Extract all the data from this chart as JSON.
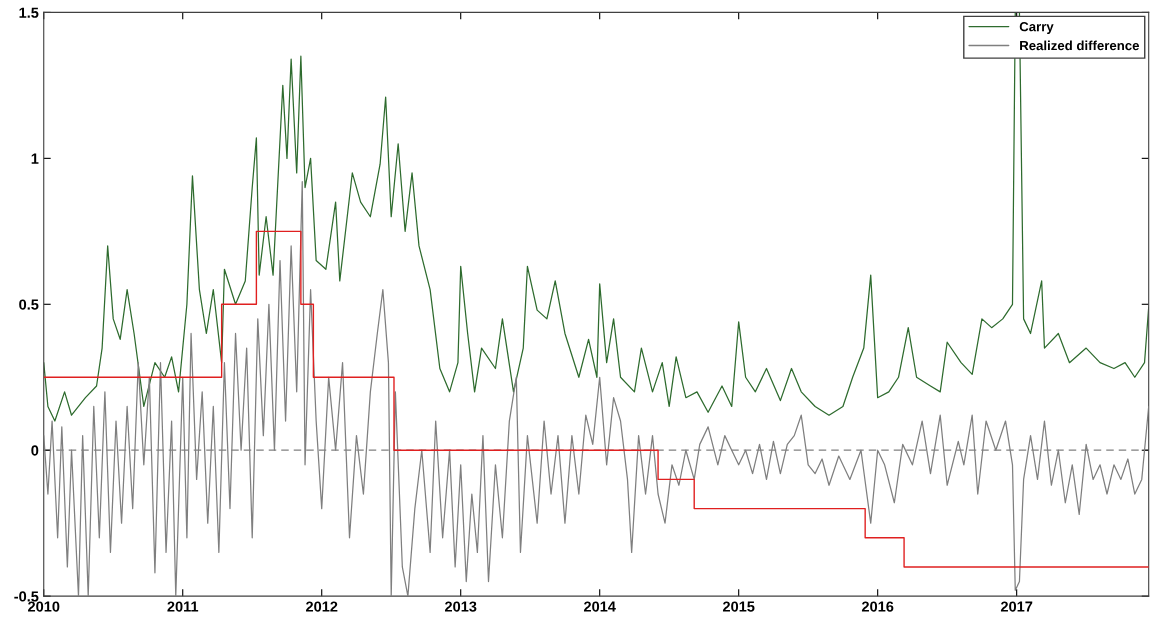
{
  "chart_data": {
    "type": "line",
    "xlim": [
      2010,
      2017.95
    ],
    "xticks": [
      2010,
      2011,
      2012,
      2013,
      2014,
      2015,
      2016,
      2017
    ],
    "ylim": [
      -0.5,
      1.5
    ],
    "yticks": [
      -0.5,
      0,
      0.5,
      1,
      1.5
    ],
    "grid": false,
    "legend": "top right",
    "ref_lines": [
      {
        "axis": "y",
        "value": 0,
        "color": "#808080",
        "line_style": "dashed"
      }
    ],
    "series": [
      {
        "name": "Carry",
        "color": "#2e6b2e",
        "x": [
          2010.0,
          2010.03,
          2010.08,
          2010.15,
          2010.2,
          2010.3,
          2010.38,
          2010.42,
          2010.46,
          2010.5,
          2010.55,
          2010.6,
          2010.65,
          2010.72,
          2010.8,
          2010.87,
          2010.92,
          2010.97,
          2011.03,
          2011.07,
          2011.12,
          2011.17,
          2011.22,
          2011.28,
          2011.3,
          2011.38,
          2011.45,
          2011.5,
          2011.53,
          2011.55,
          2011.6,
          2011.65,
          2011.72,
          2011.75,
          2011.78,
          2011.82,
          2011.85,
          2011.88,
          2011.92,
          2011.96,
          2012.03,
          2012.1,
          2012.13,
          2012.22,
          2012.28,
          2012.35,
          2012.42,
          2012.46,
          2012.5,
          2012.55,
          2012.6,
          2012.65,
          2012.7,
          2012.78,
          2012.85,
          2012.92,
          2012.98,
          2013.0,
          2013.05,
          2013.1,
          2013.15,
          2013.25,
          2013.3,
          2013.38,
          2013.45,
          2013.48,
          2013.55,
          2013.62,
          2013.68,
          2013.75,
          2013.85,
          2013.92,
          2013.98,
          2014.0,
          2014.05,
          2014.1,
          2014.15,
          2014.25,
          2014.3,
          2014.38,
          2014.45,
          2014.5,
          2014.55,
          2014.62,
          2014.7,
          2014.78,
          2014.88,
          2014.95,
          2015.0,
          2015.05,
          2015.12,
          2015.2,
          2015.3,
          2015.38,
          2015.45,
          2015.55,
          2015.65,
          2015.75,
          2015.82,
          2015.9,
          2015.95,
          2016.0,
          2016.08,
          2016.15,
          2016.22,
          2016.28,
          2016.38,
          2016.45,
          2016.5,
          2016.6,
          2016.68,
          2016.75,
          2016.82,
          2016.9,
          2016.97,
          2016.99,
          2017.02,
          2017.05,
          2017.1,
          2017.18,
          2017.2,
          2017.3,
          2017.38,
          2017.5,
          2017.6,
          2017.7,
          2017.78,
          2017.85,
          2017.92,
          2017.95
        ],
        "values": [
          0.3,
          0.15,
          0.1,
          0.2,
          0.12,
          0.18,
          0.22,
          0.35,
          0.7,
          0.45,
          0.38,
          0.55,
          0.4,
          0.15,
          0.3,
          0.25,
          0.32,
          0.2,
          0.5,
          0.94,
          0.55,
          0.4,
          0.55,
          0.3,
          0.62,
          0.5,
          0.58,
          0.9,
          1.07,
          0.6,
          0.8,
          0.6,
          1.25,
          1.0,
          1.34,
          0.95,
          1.35,
          0.9,
          1.0,
          0.65,
          0.62,
          0.85,
          0.58,
          0.95,
          0.85,
          0.8,
          0.98,
          1.21,
          0.8,
          1.05,
          0.75,
          0.95,
          0.7,
          0.55,
          0.28,
          0.2,
          0.3,
          0.63,
          0.4,
          0.2,
          0.35,
          0.28,
          0.45,
          0.2,
          0.35,
          0.63,
          0.48,
          0.45,
          0.58,
          0.4,
          0.25,
          0.38,
          0.25,
          0.57,
          0.3,
          0.45,
          0.25,
          0.2,
          0.35,
          0.2,
          0.3,
          0.15,
          0.32,
          0.18,
          0.2,
          0.13,
          0.22,
          0.15,
          0.44,
          0.25,
          0.2,
          0.28,
          0.17,
          0.28,
          0.2,
          0.15,
          0.12,
          0.15,
          0.25,
          0.35,
          0.6,
          0.18,
          0.2,
          0.25,
          0.42,
          0.25,
          0.22,
          0.2,
          0.37,
          0.3,
          0.26,
          0.45,
          0.42,
          0.45,
          0.5,
          1.5,
          1.5,
          0.45,
          0.4,
          0.58,
          0.35,
          0.4,
          0.3,
          0.35,
          0.3,
          0.28,
          0.3,
          0.25,
          0.3,
          0.49
        ]
      },
      {
        "name": "Realized difference",
        "color": "#7f7f7f",
        "x": [
          2010.0,
          2010.03,
          2010.06,
          2010.1,
          2010.13,
          2010.17,
          2010.2,
          2010.25,
          2010.28,
          2010.32,
          2010.36,
          2010.4,
          2010.44,
          2010.48,
          2010.52,
          2010.56,
          2010.6,
          2010.64,
          2010.68,
          2010.72,
          2010.76,
          2010.8,
          2010.84,
          2010.88,
          2010.92,
          2010.95,
          2011.0,
          2011.03,
          2011.06,
          2011.1,
          2011.14,
          2011.18,
          2011.22,
          2011.26,
          2011.3,
          2011.34,
          2011.38,
          2011.42,
          2011.46,
          2011.5,
          2011.54,
          2011.58,
          2011.62,
          2011.66,
          2011.7,
          2011.74,
          2011.78,
          2011.82,
          2011.86,
          2011.88,
          2011.92,
          2011.96,
          2012.0,
          2012.05,
          2012.1,
          2012.15,
          2012.2,
          2012.25,
          2012.3,
          2012.35,
          2012.4,
          2012.44,
          2012.48,
          2012.5,
          2012.53,
          2012.58,
          2012.62,
          2012.67,
          2012.72,
          2012.78,
          2012.82,
          2012.87,
          2012.92,
          2012.96,
          2013.0,
          2013.04,
          2013.08,
          2013.12,
          2013.16,
          2013.2,
          2013.25,
          2013.3,
          2013.35,
          2013.4,
          2013.43,
          2013.48,
          2013.55,
          2013.6,
          2013.65,
          2013.7,
          2013.75,
          2013.8,
          2013.85,
          2013.9,
          2013.95,
          2014.0,
          2014.05,
          2014.1,
          2014.15,
          2014.2,
          2014.23,
          2014.28,
          2014.33,
          2014.38,
          2014.42,
          2014.47,
          2014.52,
          2014.57,
          2014.62,
          2014.68,
          2014.72,
          2014.78,
          2014.85,
          2014.9,
          2014.95,
          2015.0,
          2015.05,
          2015.1,
          2015.15,
          2015.2,
          2015.25,
          2015.3,
          2015.35,
          2015.4,
          2015.45,
          2015.5,
          2015.55,
          2015.6,
          2015.65,
          2015.72,
          2015.8,
          2015.88,
          2015.95,
          2016.0,
          2016.05,
          2016.12,
          2016.18,
          2016.25,
          2016.32,
          2016.38,
          2016.45,
          2016.5,
          2016.58,
          2016.62,
          2016.68,
          2016.72,
          2016.78,
          2016.85,
          2016.92,
          2016.97,
          2016.99,
          2017.02,
          2017.05,
          2017.1,
          2017.15,
          2017.2,
          2017.25,
          2017.3,
          2017.35,
          2017.4,
          2017.45,
          2017.5,
          2017.55,
          2017.6,
          2017.65,
          2017.7,
          2017.75,
          2017.8,
          2017.85,
          2017.9,
          2017.95
        ],
        "values": [
          0.05,
          -0.15,
          0.1,
          -0.3,
          0.08,
          -0.4,
          0.0,
          -0.5,
          0.05,
          -0.5,
          0.15,
          -0.3,
          0.2,
          -0.35,
          0.1,
          -0.25,
          0.15,
          -0.2,
          0.3,
          -0.05,
          0.25,
          -0.42,
          0.3,
          -0.35,
          0.1,
          -0.5,
          0.25,
          -0.3,
          0.4,
          -0.1,
          0.2,
          -0.25,
          0.15,
          -0.35,
          0.3,
          -0.2,
          0.4,
          0.0,
          0.35,
          -0.3,
          0.45,
          0.05,
          0.5,
          0.0,
          0.65,
          0.1,
          0.7,
          0.2,
          0.92,
          -0.05,
          0.55,
          0.1,
          -0.2,
          0.25,
          0.0,
          0.3,
          -0.3,
          0.05,
          -0.15,
          0.2,
          0.4,
          0.55,
          0.3,
          -0.5,
          0.2,
          -0.4,
          -0.5,
          -0.2,
          0.0,
          -0.35,
          0.1,
          -0.3,
          0.0,
          -0.4,
          -0.05,
          -0.45,
          -0.15,
          -0.35,
          0.05,
          -0.45,
          -0.05,
          -0.3,
          0.1,
          0.25,
          -0.35,
          0.05,
          -0.25,
          0.1,
          -0.15,
          0.05,
          -0.25,
          0.05,
          -0.15,
          0.12,
          0.02,
          0.25,
          -0.05,
          0.18,
          0.1,
          -0.1,
          -0.35,
          0.05,
          -0.15,
          0.05,
          -0.15,
          -0.25,
          -0.05,
          -0.12,
          0.0,
          -0.1,
          0.02,
          0.08,
          -0.05,
          0.05,
          0.0,
          -0.05,
          0.0,
          -0.08,
          0.02,
          -0.1,
          0.03,
          -0.08,
          0.02,
          0.05,
          0.12,
          -0.05,
          -0.08,
          -0.03,
          -0.12,
          -0.02,
          -0.1,
          0.0,
          -0.25,
          0.0,
          -0.05,
          -0.18,
          0.02,
          -0.05,
          0.1,
          -0.08,
          0.12,
          -0.12,
          0.03,
          -0.05,
          0.12,
          -0.15,
          0.1,
          0.0,
          0.1,
          -0.05,
          -0.48,
          -0.45,
          -0.1,
          0.05,
          -0.1,
          0.1,
          -0.12,
          0.0,
          -0.18,
          -0.05,
          -0.22,
          0.02,
          -0.1,
          -0.05,
          -0.15,
          -0.05,
          -0.1,
          -0.03,
          -0.15,
          -0.1,
          0.15
        ]
      },
      {
        "type": "step",
        "color": "#e02020",
        "x": [
          2010,
          2011.28,
          2011.53,
          2011.85,
          2011.94,
          2012.52,
          2014.42,
          2014.68,
          2015.91,
          2016.19,
          2017.95
        ],
        "values": [
          0.25,
          0.5,
          0.75,
          0.5,
          0.25,
          0,
          -0.1,
          -0.2,
          -0.3,
          -0.4,
          -0.4
        ]
      }
    ]
  }
}
